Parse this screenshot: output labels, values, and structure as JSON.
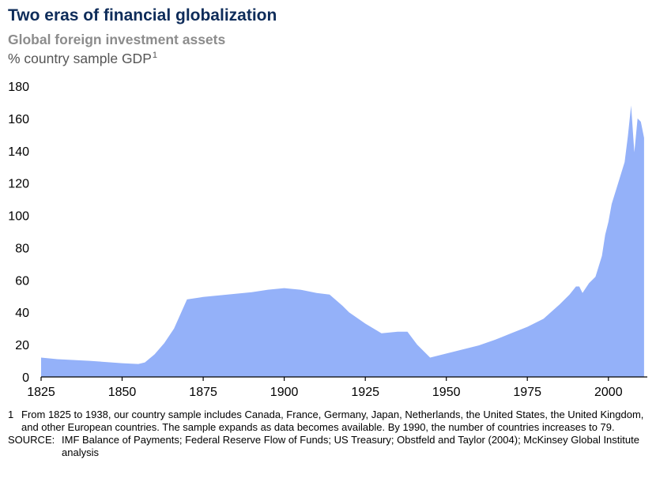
{
  "header": {
    "title": "Two eras of financial globalization",
    "subtitle": "Global foreign investment assets",
    "unit": "% country sample GDP",
    "unit_footnote": "1"
  },
  "chart_data": {
    "type": "area",
    "title": "Two eras of financial globalization",
    "subtitle": "Global foreign investment assets",
    "ylabel": "% country sample GDP",
    "xlabel": "",
    "xlim": [
      1825,
      2012
    ],
    "ylim": [
      0,
      180
    ],
    "xticks": [
      1825,
      1850,
      1875,
      1900,
      1925,
      1950,
      1975,
      2000
    ],
    "yticks": [
      0,
      20,
      40,
      60,
      80,
      100,
      120,
      140,
      160,
      180
    ],
    "grid": false,
    "legend": "none",
    "fill_color": "#94b1f9",
    "x": [
      1825,
      1830,
      1840,
      1850,
      1855,
      1857,
      1860,
      1863,
      1866,
      1870,
      1875,
      1880,
      1885,
      1890,
      1895,
      1900,
      1905,
      1910,
      1914,
      1918,
      1920,
      1925,
      1930,
      1935,
      1938,
      1941,
      1945,
      1950,
      1955,
      1960,
      1965,
      1970,
      1975,
      1980,
      1985,
      1988,
      1990,
      1991,
      1992,
      1994,
      1996,
      1998,
      1999,
      2000,
      2001,
      2003,
      2005,
      2006,
      2007,
      2008,
      2009,
      2010,
      2011
    ],
    "y": [
      12,
      11,
      10,
      8.5,
      8,
      9,
      14,
      21,
      30,
      48,
      49.5,
      50.5,
      51.5,
      52.5,
      54,
      55,
      54,
      52,
      51,
      44,
      40,
      33,
      27,
      28,
      28,
      20,
      12,
      14.5,
      17,
      19.5,
      23,
      27,
      31,
      36,
      45,
      51,
      56,
      56,
      52,
      58,
      62,
      75,
      88,
      96,
      107,
      120,
      133,
      149,
      168,
      139,
      160,
      158,
      148
    ],
    "footnote": "From 1825 to 1938, our country sample includes Canada, France, Germany, Japan, Netherlands, the United States, the United Kingdom, and other European countries. The sample expands as data becomes available. By 1990, the number of countries increases to 79.",
    "footnote_number": "1",
    "source_label": "SOURCE:",
    "source": "IMF Balance of Payments; Federal Reserve Flow of Funds; US Treasury; Obstfeld and Taylor (2004); McKinsey Global Institute analysis"
  },
  "colors": {
    "title": "#0e2c5a",
    "subtitle": "#8c8c8c",
    "area": "#94b1f9",
    "axis": "#000000"
  }
}
